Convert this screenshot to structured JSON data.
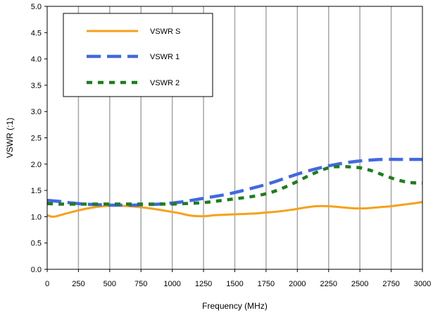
{
  "chart_data": {
    "type": "line",
    "xlabel": "Frequency (MHz)",
    "ylabel": "VSWR (:1)",
    "xlim": [
      0,
      3000
    ],
    "ylim": [
      0,
      5.0
    ],
    "xticks": [
      0,
      250,
      500,
      750,
      1000,
      1250,
      1500,
      1750,
      2000,
      2250,
      2500,
      2750,
      3000
    ],
    "yticks": [
      "0.0",
      "0.5",
      "1.0",
      "1.5",
      "2.0",
      "2.5",
      "3.0",
      "3.5",
      "4.0",
      "4.5",
      "5.0"
    ],
    "grid": "vertical",
    "legend_position": "top-left",
    "series": [
      {
        "name": "VSWR S",
        "color": "#f7a11a",
        "style": "solid",
        "x": [
          0,
          50,
          150,
          250,
          350,
          450,
          550,
          650,
          750,
          850,
          950,
          1050,
          1150,
          1250,
          1350,
          1450,
          1550,
          1650,
          1750,
          1850,
          1950,
          2050,
          2150,
          2250,
          2350,
          2450,
          2550,
          2650,
          2750,
          2850,
          2950,
          3000
        ],
        "values": [
          1.03,
          1.0,
          1.06,
          1.12,
          1.17,
          1.2,
          1.21,
          1.2,
          1.18,
          1.15,
          1.11,
          1.07,
          1.02,
          1.01,
          1.03,
          1.04,
          1.05,
          1.06,
          1.08,
          1.1,
          1.13,
          1.17,
          1.2,
          1.2,
          1.18,
          1.16,
          1.16,
          1.18,
          1.2,
          1.23,
          1.26,
          1.28
        ]
      },
      {
        "name": "VSWR 1",
        "color": "#4169e1",
        "style": "long-dash",
        "x": [
          0,
          100,
          200,
          300,
          400,
          500,
          600,
          700,
          800,
          900,
          1000,
          1100,
          1200,
          1300,
          1400,
          1500,
          1600,
          1700,
          1800,
          1900,
          2000,
          2100,
          2200,
          2300,
          2400,
          2500,
          2600,
          2700,
          2800,
          2900,
          3000
        ],
        "values": [
          1.31,
          1.29,
          1.26,
          1.24,
          1.23,
          1.22,
          1.22,
          1.22,
          1.23,
          1.24,
          1.26,
          1.29,
          1.33,
          1.37,
          1.41,
          1.46,
          1.52,
          1.58,
          1.65,
          1.73,
          1.81,
          1.88,
          1.94,
          1.99,
          2.03,
          2.06,
          2.08,
          2.09,
          2.09,
          2.09,
          2.09
        ]
      },
      {
        "name": "VSWR 2",
        "color": "#1e7d1e",
        "style": "dotted",
        "x": [
          0,
          100,
          200,
          300,
          400,
          500,
          600,
          700,
          800,
          900,
          1000,
          1100,
          1200,
          1300,
          1400,
          1500,
          1600,
          1700,
          1800,
          1900,
          2000,
          2100,
          2200,
          2250,
          2300,
          2400,
          2500,
          2600,
          2700,
          2800,
          2900,
          3000
        ],
        "values": [
          1.25,
          1.24,
          1.24,
          1.24,
          1.24,
          1.24,
          1.24,
          1.24,
          1.24,
          1.24,
          1.24,
          1.25,
          1.26,
          1.28,
          1.31,
          1.34,
          1.37,
          1.41,
          1.47,
          1.56,
          1.67,
          1.79,
          1.89,
          1.93,
          1.95,
          1.95,
          1.93,
          1.87,
          1.78,
          1.7,
          1.65,
          1.64
        ]
      }
    ]
  }
}
